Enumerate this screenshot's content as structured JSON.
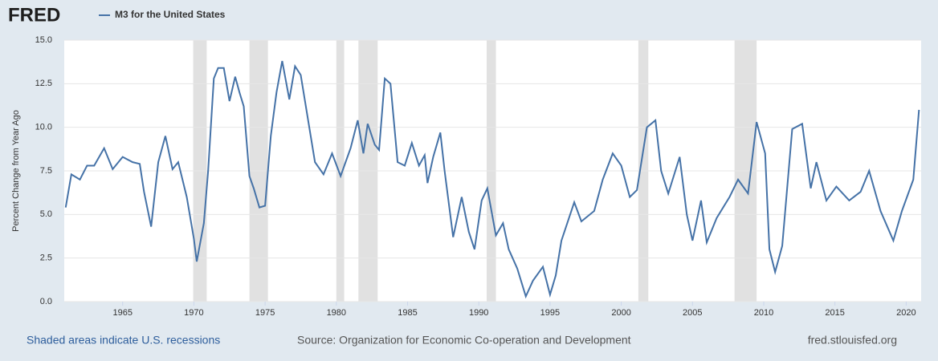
{
  "logo": "FRED",
  "chart_data": {
    "type": "line",
    "ylabel": "Percent Change from Year Ago",
    "series": [
      {
        "name": "M3 for the United States",
        "color": "#4572a7",
        "x": [
          1961.0,
          1961.4,
          1962.0,
          1962.5,
          1963.0,
          1963.7,
          1964.3,
          1965.0,
          1965.7,
          1966.2,
          1966.5,
          1967.0,
          1967.5,
          1968.0,
          1968.5,
          1968.9,
          1969.5,
          1970.0,
          1970.2,
          1970.7,
          1971.0,
          1971.4,
          1971.7,
          1972.1,
          1972.5,
          1972.9,
          1973.2,
          1973.5,
          1973.9,
          1974.2,
          1974.6,
          1975.0,
          1975.4,
          1975.8,
          1976.2,
          1976.7,
          1977.1,
          1977.5,
          1978.0,
          1978.5,
          1979.1,
          1979.7,
          1980.3,
          1981.0,
          1981.5,
          1981.9,
          1982.2,
          1982.7,
          1983.0,
          1983.4,
          1983.8,
          1984.3,
          1984.8,
          1985.3,
          1985.8,
          1986.2,
          1986.4,
          1986.8,
          1987.3,
          1987.6,
          1988.2,
          1988.8,
          1989.3,
          1989.7,
          1990.2,
          1990.6,
          1991.2,
          1991.7,
          1992.1,
          1992.7,
          1993.3,
          1993.8,
          1994.5,
          1995.0,
          1995.4,
          1995.8,
          1996.7,
          1997.2,
          1998.1,
          1998.7,
          1999.4,
          2000.0,
          2000.6,
          2001.1,
          2001.8,
          2002.4,
          2002.8,
          2003.3,
          2004.1,
          2004.6,
          2005.0,
          2005.6,
          2006.0,
          2006.7,
          2007.6,
          2008.2,
          2008.9,
          2009.5,
          2010.1,
          2010.4,
          2010.8,
          2011.3,
          2012.0,
          2012.7,
          2013.3,
          2013.7,
          2014.4,
          2015.1,
          2016.0,
          2016.8,
          2017.4,
          2018.2,
          2019.1,
          2019.7,
          2020.5,
          2020.9
        ],
        "values": [
          5.4,
          7.3,
          7.0,
          7.8,
          7.8,
          8.8,
          7.6,
          8.3,
          8.0,
          7.9,
          6.3,
          4.3,
          8.0,
          9.5,
          7.6,
          8.0,
          6.0,
          3.6,
          2.3,
          4.5,
          7.5,
          12.8,
          13.4,
          13.4,
          11.5,
          12.9,
          12.0,
          11.2,
          7.2,
          6.5,
          5.4,
          5.5,
          9.5,
          12.0,
          13.8,
          11.6,
          13.5,
          13.0,
          10.5,
          8.0,
          7.3,
          8.5,
          7.2,
          8.8,
          10.4,
          8.5,
          10.2,
          9.0,
          8.7,
          12.8,
          12.5,
          8.0,
          7.8,
          9.1,
          7.8,
          8.4,
          6.8,
          8.3,
          9.7,
          7.5,
          3.7,
          6.0,
          4.0,
          3.0,
          5.8,
          6.5,
          3.8,
          4.5,
          3.0,
          1.9,
          0.3,
          1.2,
          2.0,
          0.4,
          1.5,
          3.5,
          5.7,
          4.6,
          5.2,
          7.0,
          8.5,
          7.8,
          6.0,
          6.4,
          10.0,
          10.4,
          7.5,
          6.2,
          8.3,
          5.0,
          3.5,
          5.8,
          3.4,
          4.8,
          6.0,
          7.0,
          6.2,
          10.3,
          8.5,
          3.0,
          1.7,
          3.2,
          9.9,
          10.2,
          6.5,
          8.0,
          5.8,
          6.6,
          5.8,
          6.3,
          7.5,
          5.2,
          3.5,
          5.2,
          7.0,
          11.0
        ]
      }
    ],
    "xlim": [
      1960.9,
      2021.05
    ],
    "xticks": [
      1965,
      1970,
      1975,
      1980,
      1985,
      1990,
      1995,
      2000,
      2005,
      2010,
      2015,
      2020
    ],
    "ylim": [
      0,
      15
    ],
    "yticks": [
      {
        "value": 0,
        "label": "0.0"
      },
      2.5,
      {
        "value": 5,
        "label": "5.0"
      },
      7.5,
      {
        "value": 10,
        "label": "10.0"
      },
      12.5,
      {
        "value": 15,
        "label": "15.0"
      }
    ],
    "grid": true,
    "recessions": [
      [
        1969.95,
        1970.9
      ],
      [
        1973.9,
        1975.2
      ],
      [
        1980.0,
        1980.55
      ],
      [
        1981.55,
        1982.9
      ],
      [
        1990.55,
        1991.2
      ],
      [
        2001.2,
        2001.9
      ],
      [
        2007.95,
        2009.5
      ]
    ],
    "recession_color": "#e1e1e1",
    "footnote": "Shaded areas indicate U.S. recessions",
    "source": "Source: Organization for Economic Co-operation and Development",
    "site": "fred.stlouisfed.org"
  }
}
